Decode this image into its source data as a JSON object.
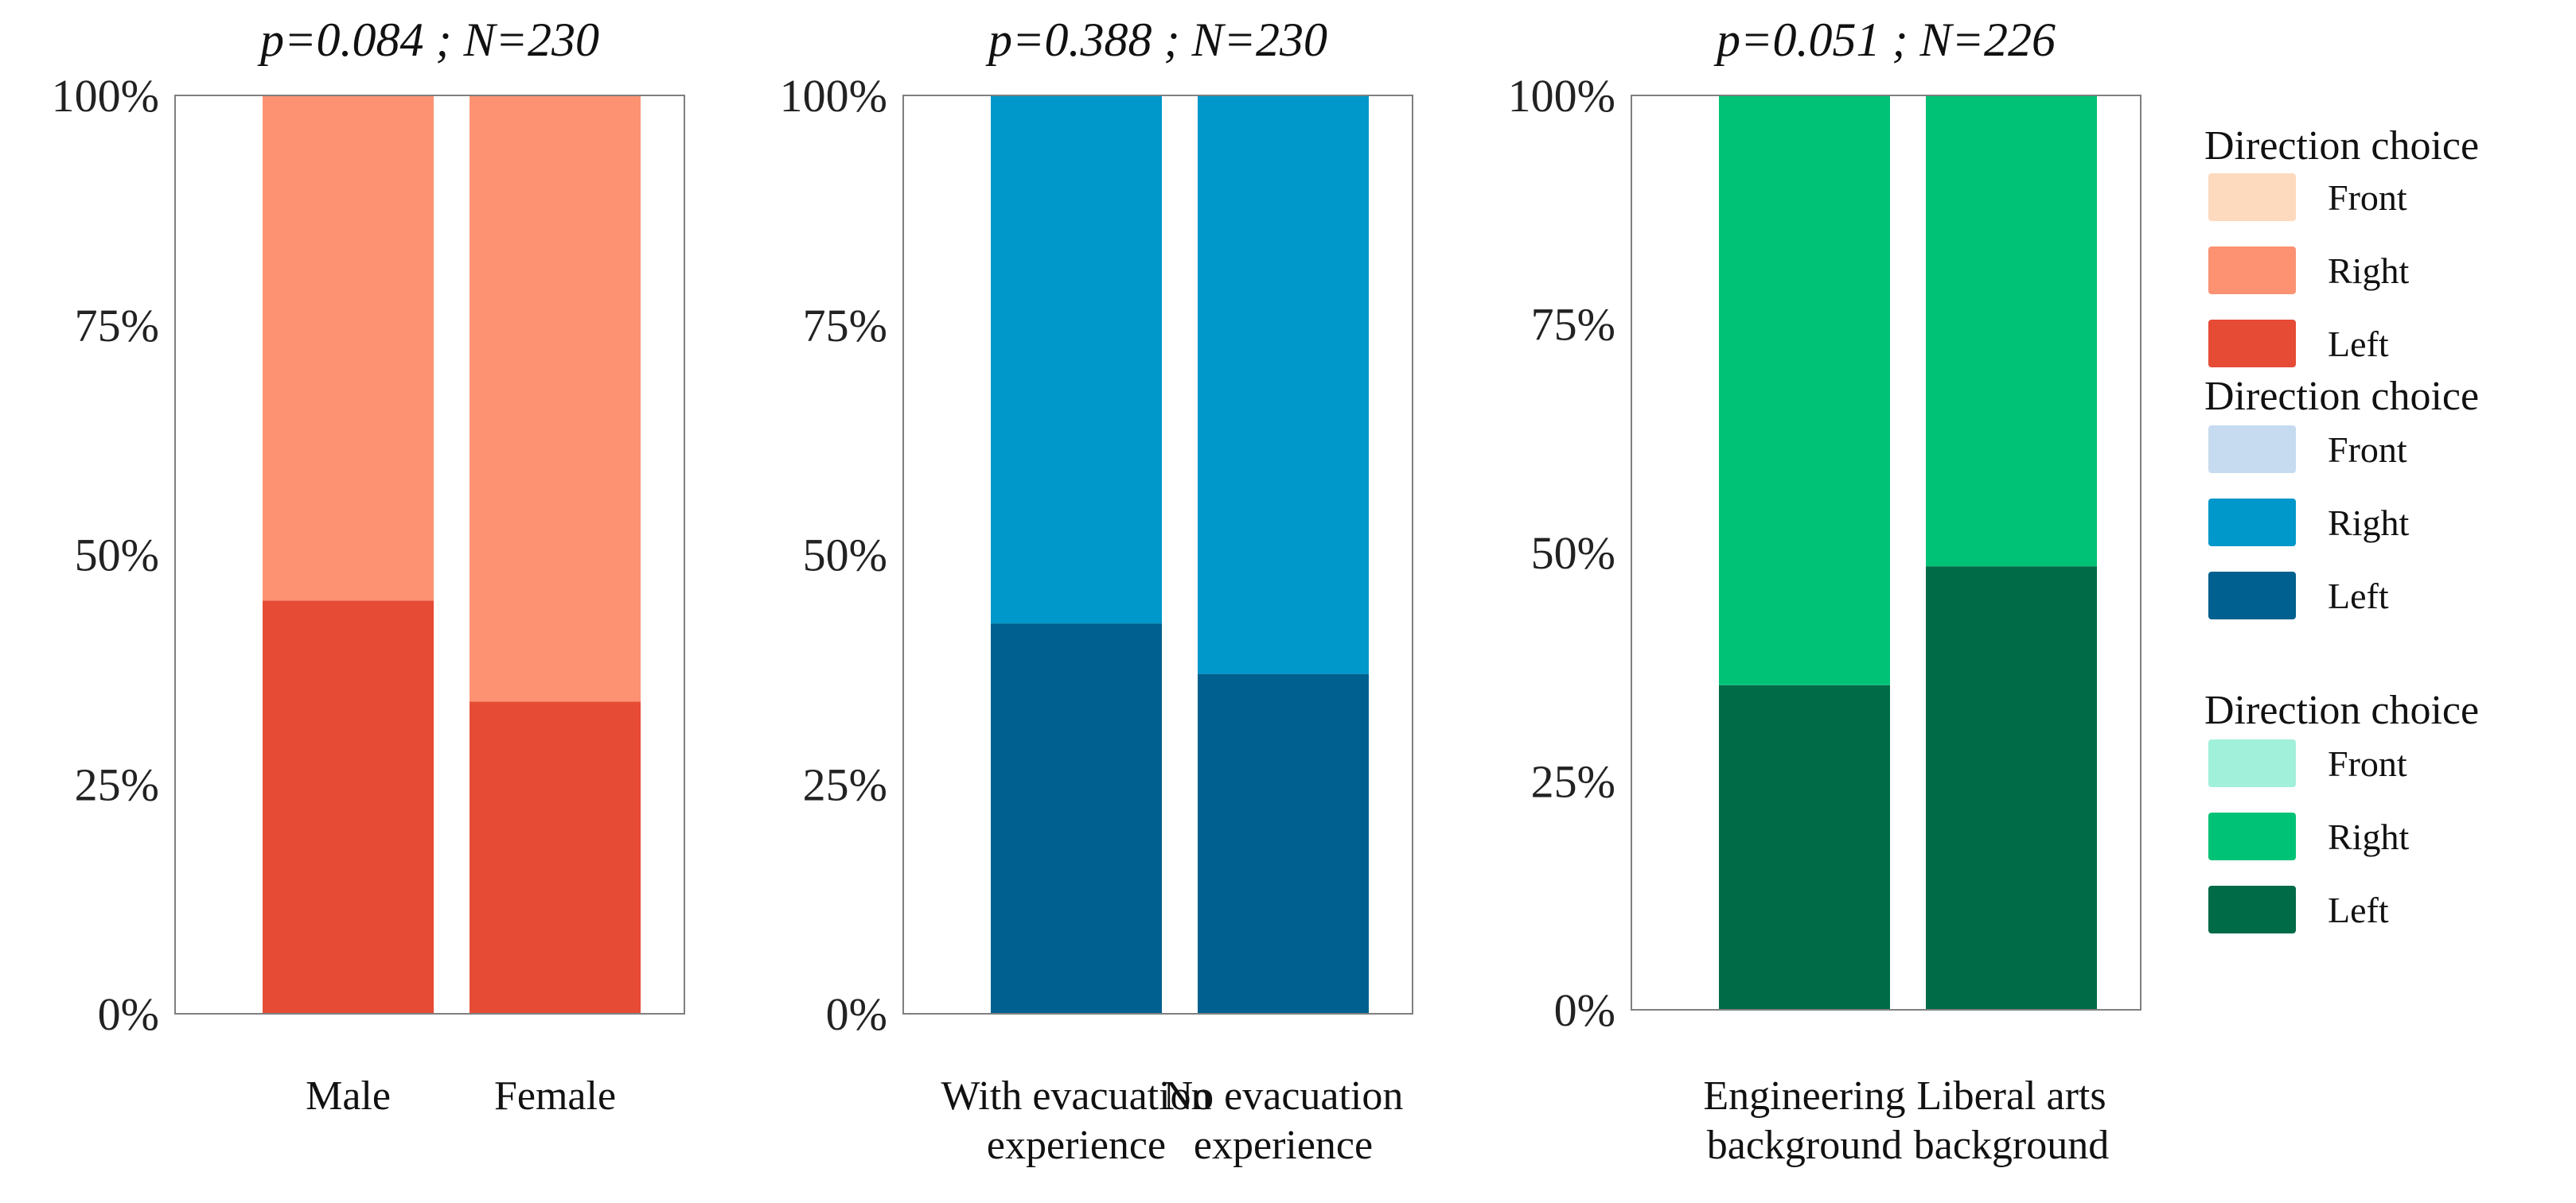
{
  "chart_data": [
    {
      "type": "bar",
      "stacked": true,
      "title": "p=0.084 ; N=230",
      "categories": [
        "Male",
        "Female"
      ],
      "yticks": [
        "0%",
        "25%",
        "50%",
        "75%",
        "100%"
      ],
      "ylim": [
        0,
        100
      ],
      "series": [
        {
          "name": "Left",
          "values": [
            45,
            34
          ],
          "color": "#E64B35"
        },
        {
          "name": "Right",
          "values": [
            55,
            66
          ],
          "color": "#FC9272"
        },
        {
          "name": "Front",
          "values": [
            0,
            0
          ],
          "color": "#FDD9BE"
        }
      ],
      "legend": {
        "title": "Direction choice",
        "items": [
          {
            "label": "Front",
            "color": "#FDD9BE"
          },
          {
            "label": "Right",
            "color": "#FC9272"
          },
          {
            "label": "Left",
            "color": "#E64B35"
          }
        ]
      }
    },
    {
      "type": "bar",
      "stacked": true,
      "title": "p=0.388 ; N=230",
      "categories": [
        "With evacuation\nexperience",
        "No evacuation\nexperience"
      ],
      "yticks": [
        "0%",
        "25%",
        "50%",
        "75%",
        "100%"
      ],
      "ylim": [
        0,
        100
      ],
      "series": [
        {
          "name": "Left",
          "values": [
            42.5,
            37
          ],
          "color": "#00608F"
        },
        {
          "name": "Right",
          "values": [
            57.5,
            63
          ],
          "color": "#0098CA"
        },
        {
          "name": "Front",
          "values": [
            0,
            0
          ],
          "color": "#C6DBEF"
        }
      ],
      "legend": {
        "title": "Direction choice",
        "items": [
          {
            "label": "Front",
            "color": "#C6DBEF"
          },
          {
            "label": "Right",
            "color": "#0098CA"
          },
          {
            "label": "Left",
            "color": "#00608F"
          }
        ]
      }
    },
    {
      "type": "bar",
      "stacked": true,
      "title": "p=0.051 ; N=226",
      "categories": [
        "Engineering\nbackground",
        "Liberal arts\nbackground"
      ],
      "yticks": [
        "0%",
        "25%",
        "50%",
        "75%",
        "100%"
      ],
      "ylim": [
        0,
        100
      ],
      "series": [
        {
          "name": "Left",
          "values": [
            35.5,
            48.5
          ],
          "color": "#006B47"
        },
        {
          "name": "Right",
          "values": [
            64.5,
            51.5
          ],
          "color": "#00C277"
        },
        {
          "name": "Front",
          "values": [
            0,
            0
          ],
          "color": "#A1F0D9"
        }
      ],
      "legend": {
        "title": "Direction choice",
        "items": [
          {
            "label": "Front",
            "color": "#A1F0D9"
          },
          {
            "label": "Right",
            "color": "#00C277"
          },
          {
            "label": "Left",
            "color": "#006B47"
          }
        ]
      }
    }
  ]
}
